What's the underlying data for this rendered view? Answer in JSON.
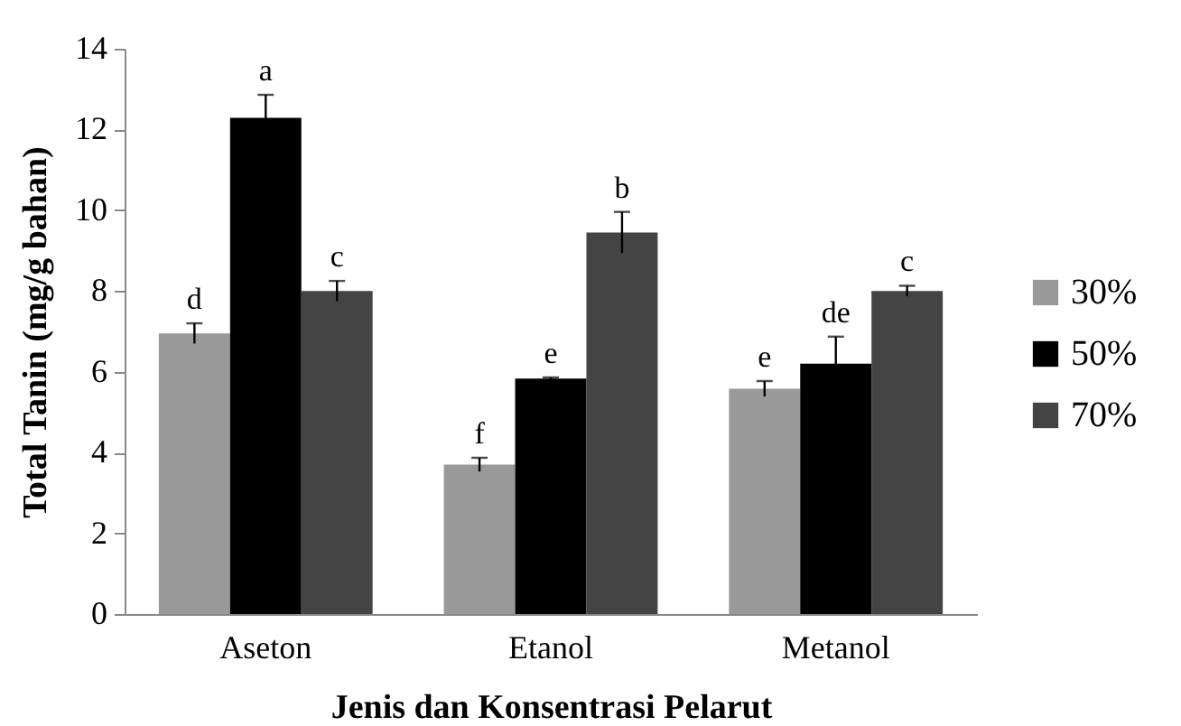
{
  "chart_data": {
    "type": "bar",
    "xlabel": "Jenis dan Konsentrasi Pelarut",
    "ylabel": "Total Tanin (mg/g bahan)",
    "categories": [
      "Aseton",
      "Etanol",
      "Metanol"
    ],
    "series": [
      {
        "name": "30%",
        "color": "#999999",
        "values": [
          6.95,
          3.7,
          5.58
        ],
        "errors": [
          0.25,
          0.17,
          0.19
        ],
        "value_labels": [
          "d",
          "f",
          "e"
        ]
      },
      {
        "name": "50%",
        "color": "#000000",
        "values": [
          12.29,
          5.83,
          6.2
        ],
        "errors": [
          0.57,
          0.03,
          0.67
        ],
        "value_labels": [
          "a",
          "e",
          "de"
        ]
      },
      {
        "name": "70%",
        "color": "#444444",
        "values": [
          8.0,
          9.45,
          8.0
        ],
        "errors": [
          0.25,
          0.51,
          0.13
        ],
        "value_labels": [
          "c",
          "b",
          "c"
        ]
      }
    ],
    "ylim": [
      0,
      14
    ],
    "yticks": [
      0,
      2,
      4,
      6,
      8,
      10,
      12,
      14
    ],
    "grid": false,
    "legend": "right"
  }
}
